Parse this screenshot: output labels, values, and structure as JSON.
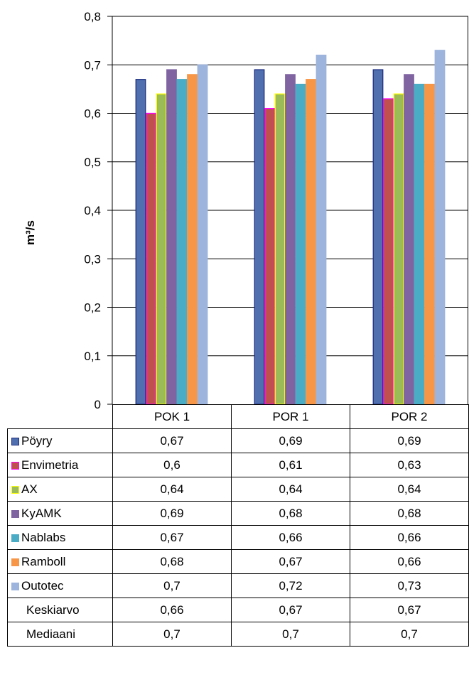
{
  "chart_data": {
    "type": "bar",
    "ylabel": "m³/s",
    "ylim": [
      0,
      0.8
    ],
    "yticks": [
      "0",
      "0,1",
      "0,2",
      "0,3",
      "0,4",
      "0,5",
      "0,6",
      "0,7",
      "0,8"
    ],
    "categories": [
      "POK 1",
      "POR 1",
      "POR 2"
    ],
    "grid": true,
    "series": [
      {
        "name": "Pöyry",
        "values": [
          0.67,
          0.69,
          0.69
        ],
        "color": "#4F6FAF",
        "border": "#1F2F80"
      },
      {
        "name": "Envimetria",
        "values": [
          0.6,
          0.61,
          0.63
        ],
        "color": "#C0504D",
        "border": "#FF00FF"
      },
      {
        "name": "AX",
        "values": [
          0.64,
          0.64,
          0.64
        ],
        "color": "#9BBB59",
        "border": "#FFFF00"
      },
      {
        "name": "KyAMK",
        "values": [
          0.69,
          0.68,
          0.68
        ],
        "color": "#8064A2",
        "border": "#8064A2"
      },
      {
        "name": "Nablabs",
        "values": [
          0.67,
          0.66,
          0.66
        ],
        "color": "#4BACC6",
        "border": "#4BACC6"
      },
      {
        "name": "Ramboll",
        "values": [
          0.68,
          0.67,
          0.66
        ],
        "color": "#F79646",
        "border": "#F79646"
      },
      {
        "name": "Outotec",
        "values": [
          0.7,
          0.72,
          0.73
        ],
        "color": "#9DB4DC",
        "border": "#9DB4DC"
      }
    ],
    "table_rows": [
      {
        "label": "Pöyry",
        "key": true,
        "values": [
          "0,67",
          "0,69",
          "0,69"
        ]
      },
      {
        "label": "Envimetria",
        "key": true,
        "values": [
          "0,6",
          "0,61",
          "0,63"
        ]
      },
      {
        "label": "AX",
        "key": true,
        "values": [
          "0,64",
          "0,64",
          "0,64"
        ]
      },
      {
        "label": "KyAMK",
        "key": true,
        "values": [
          "0,69",
          "0,68",
          "0,68"
        ]
      },
      {
        "label": "Nablabs",
        "key": true,
        "values": [
          "0,67",
          "0,66",
          "0,66"
        ]
      },
      {
        "label": "Ramboll",
        "key": true,
        "values": [
          "0,68",
          "0,67",
          "0,66"
        ]
      },
      {
        "label": "Outotec",
        "key": true,
        "values": [
          "0,7",
          "0,72",
          "0,73"
        ]
      },
      {
        "label": "Keskiarvo",
        "key": false,
        "values": [
          "0,66",
          "0,67",
          "0,67"
        ]
      },
      {
        "label": "Mediaani",
        "key": false,
        "values": [
          "0,7",
          "0,7",
          "0,7"
        ]
      }
    ]
  }
}
